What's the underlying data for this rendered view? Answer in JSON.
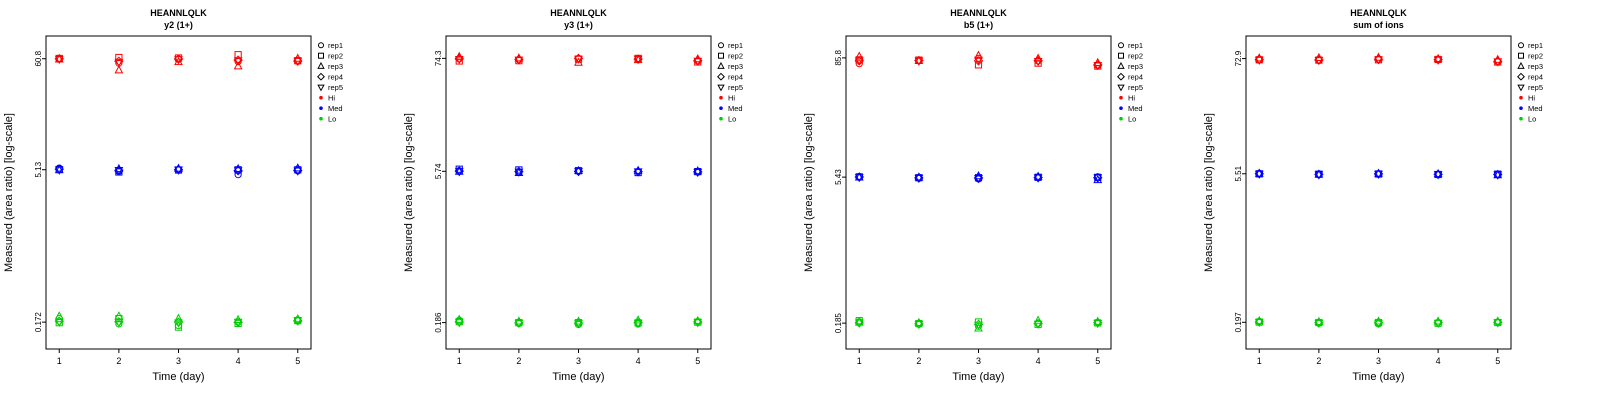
{
  "figure": {
    "background": "#FFFFFF"
  },
  "chart_data": {
    "type": "scatter",
    "shared": {
      "xlabel": "Time (day)",
      "ylabel": "Measured (area ratio) [log-scale]",
      "x_ticks": [
        1,
        2,
        3,
        4,
        5
      ],
      "y_scale": "log",
      "grid": false,
      "legend_position": "right",
      "symbols": [
        "circle",
        "square",
        "triangle-up",
        "diamond",
        "triangle-down"
      ],
      "legend": {
        "replicates": [
          {
            "label": "rep1",
            "symbol": "circle"
          },
          {
            "label": "rep2",
            "symbol": "square"
          },
          {
            "label": "rep3",
            "symbol": "triangle-up"
          },
          {
            "label": "rep4",
            "symbol": "diamond"
          },
          {
            "label": "rep5",
            "symbol": "triangle-down"
          }
        ],
        "levels": [
          {
            "label": "Hi",
            "color": "#FF0000"
          },
          {
            "label": "Med",
            "color": "#0000FF"
          },
          {
            "label": "Lo",
            "color": "#00CD00"
          }
        ]
      }
    },
    "panels": [
      {
        "title": "HEANNLQLK",
        "subtitle": "y2 (1+)",
        "y_tick_labels": [
          "60.8",
          "5.13",
          "0.172"
        ],
        "series": [
          {
            "level": "Hi",
            "color": "#FF0000",
            "days": [
              [
                60.5,
                61.2,
                60.0,
                60.8,
                60.4
              ],
              [
                55.0,
                62.5,
                47.0,
                57.5,
                56.5
              ],
              [
                60.2,
                61.8,
                56.5,
                60.5,
                60.0
              ],
              [
                57.0,
                66.5,
                51.5,
                59.0,
                58.5
              ],
              [
                57.5,
                58.2,
                61.0,
                57.8,
                58.0
              ]
            ]
          },
          {
            "level": "Med",
            "color": "#0000FF",
            "days": [
              [
                5.32,
                5.15,
                5.1,
                5.2,
                5.12
              ],
              [
                4.95,
                4.88,
                5.22,
                5.05,
                5.08
              ],
              [
                5.15,
                5.1,
                5.26,
                5.12,
                5.14
              ],
              [
                4.6,
                5.12,
                5.22,
                5.02,
                5.06
              ],
              [
                5.0,
                5.12,
                5.3,
                5.06,
                5.02
              ]
            ]
          },
          {
            "level": "Lo",
            "color": "#00CD00",
            "days": [
              [
                0.186,
                0.17,
                0.196,
                0.176,
                0.173
              ],
              [
                0.165,
                0.186,
                0.196,
                0.173,
                0.171
              ],
              [
                0.159,
                0.154,
                0.186,
                0.172,
                0.17
              ],
              [
                0.172,
                0.167,
                0.181,
                0.171,
                0.173
              ],
              [
                0.181,
                0.178,
                0.184,
                0.177,
                0.179
              ]
            ]
          }
        ]
      },
      {
        "title": "HEANNLQLK",
        "subtitle": "y3 (1+)",
        "y_tick_labels": [
          "74.3",
          "5.74",
          "0.186"
        ],
        "series": [
          {
            "level": "Hi",
            "color": "#FF0000",
            "days": [
              [
                73.5,
                70.0,
                77.0,
                74.0,
                73.0
              ],
              [
                72.0,
                70.5,
                74.5,
                72.5,
                72.0
              ],
              [
                74.0,
                73.0,
                67.5,
                74.2,
                73.5
              ],
              [
                73.5,
                74.2,
                71.5,
                73.0,
                73.3
              ],
              [
                70.0,
                68.5,
                73.0,
                70.5,
                70.2
              ]
            ]
          },
          {
            "level": "Med",
            "color": "#0000FF",
            "days": [
              [
                5.82,
                6.02,
                5.7,
                5.76,
                5.73
              ],
              [
                5.6,
                5.92,
                5.54,
                5.7,
                5.67
              ],
              [
                5.76,
                5.82,
                5.79,
                5.73,
                5.75
              ],
              [
                5.7,
                5.58,
                5.82,
                5.68,
                5.71
              ],
              [
                5.64,
                5.7,
                5.76,
                5.67,
                5.65
              ]
            ]
          },
          {
            "level": "Lo",
            "color": "#00CD00",
            "days": [
              [
                0.196,
                0.19,
                0.199,
                0.189,
                0.187
              ],
              [
                0.182,
                0.186,
                0.191,
                0.185,
                0.184
              ],
              [
                0.178,
                0.186,
                0.191,
                0.184,
                0.183
              ],
              [
                0.18,
                0.185,
                0.196,
                0.186,
                0.184
              ],
              [
                0.191,
                0.188,
                0.193,
                0.189,
                0.187
              ]
            ]
          }
        ]
      },
      {
        "title": "HEANNLQLK",
        "subtitle": "b5 (1+)",
        "y_tick_labels": [
          "85.8",
          "5.43",
          "0.185"
        ],
        "series": [
          {
            "level": "Hi",
            "color": "#FF0000",
            "days": [
              [
                75.0,
                82.0,
                88.5,
                80.0,
                81.0
              ],
              [
                80.5,
                81.5,
                80.0,
                80.8,
                80.3
              ],
              [
                85.0,
                73.0,
                90.5,
                80.0,
                82.0
              ],
              [
                80.0,
                76.0,
                84.5,
                80.5,
                79.5
              ],
              [
                72.0,
                71.0,
                76.5,
                73.0,
                72.5
              ]
            ]
          },
          {
            "level": "Med",
            "color": "#0000FF",
            "days": [
              [
                5.52,
                5.46,
                5.4,
                5.44,
                5.42
              ],
              [
                5.3,
                5.36,
                5.41,
                5.34,
                5.32
              ],
              [
                5.2,
                5.36,
                5.56,
                5.33,
                5.3
              ],
              [
                5.36,
                5.41,
                5.5,
                5.38,
                5.37
              ],
              [
                5.46,
                5.4,
                5.08,
                5.36,
                5.38
              ]
            ]
          },
          {
            "level": "Lo",
            "color": "#00CD00",
            "days": [
              [
                0.191,
                0.196,
                0.188,
                0.186,
                0.187
              ],
              [
                0.18,
                0.183,
                0.186,
                0.182,
                0.181
              ],
              [
                0.172,
                0.19,
                0.164,
                0.18,
                0.178
              ],
              [
                0.185,
                0.18,
                0.196,
                0.183,
                0.182
              ],
              [
                0.188,
                0.186,
                0.191,
                0.187,
                0.185
              ]
            ]
          }
        ]
      },
      {
        "title": "HEANNLQLK",
        "subtitle": "sum of ions",
        "y_tick_labels": [
          "72.9",
          "5.51",
          "0.197"
        ],
        "series": [
          {
            "level": "Hi",
            "color": "#FF0000",
            "days": [
              [
                70.5,
                71.0,
                73.5,
                71.5,
                70.8
              ],
              [
                70.0,
                70.5,
                74.0,
                70.8,
                70.3
              ],
              [
                72.0,
                71.0,
                74.5,
                71.8,
                71.5
              ],
              [
                71.0,
                71.5,
                72.5,
                71.2,
                71.0
              ],
              [
                68.0,
                67.5,
                71.0,
                68.5,
                68.2
              ]
            ]
          },
          {
            "level": "Med",
            "color": "#0000FF",
            "days": [
              [
                5.56,
                5.5,
                5.53,
                5.51,
                5.5
              ],
              [
                5.4,
                5.46,
                5.42,
                5.43,
                5.41
              ],
              [
                5.5,
                5.48,
                5.53,
                5.5,
                5.49
              ],
              [
                5.45,
                5.42,
                5.48,
                5.44,
                5.43
              ],
              [
                5.4,
                5.46,
                5.34,
                5.42,
                5.4
              ]
            ]
          },
          {
            "level": "Lo",
            "color": "#00CD00",
            "days": [
              [
                0.201,
                0.198,
                0.203,
                0.199,
                0.198
              ],
              [
                0.193,
                0.196,
                0.199,
                0.195,
                0.194
              ],
              [
                0.19,
                0.196,
                0.201,
                0.195,
                0.193
              ],
              [
                0.195,
                0.193,
                0.201,
                0.196,
                0.194
              ],
              [
                0.198,
                0.196,
                0.201,
                0.197,
                0.196
              ]
            ]
          }
        ]
      }
    ]
  }
}
